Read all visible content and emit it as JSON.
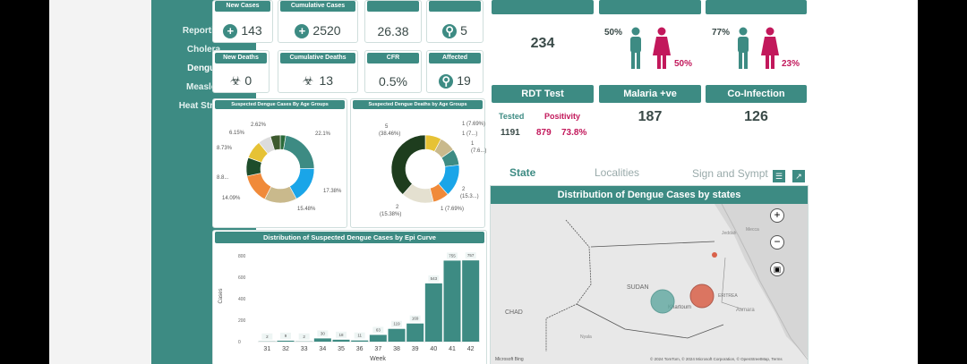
{
  "sidebar": {
    "items": [
      {
        "label": "Reporting",
        "active": false
      },
      {
        "label": "Cholera",
        "active": false
      },
      {
        "label": "Dengue",
        "active": true
      },
      {
        "label": "Measles",
        "active": false
      },
      {
        "label": "Heat Stroke",
        "active": false
      }
    ]
  },
  "kpis_top": {
    "new_cases": {
      "label": "New Cases",
      "value": "143"
    },
    "cumulative_cases": {
      "label": "Cumulative Cases",
      "value": "2520"
    },
    "kpi3": {
      "value": "26.38"
    },
    "kpi4": {
      "value": "5"
    }
  },
  "kpis_bottom": {
    "new_deaths": {
      "label": "New Deaths",
      "value": "0"
    },
    "cumulative_deaths": {
      "label": "Cumulative Deaths",
      "value": "13"
    },
    "cfr": {
      "label": "CFR",
      "value": "0.5%"
    },
    "affected_localities": {
      "label": "Affected Localities",
      "value": "19"
    }
  },
  "total": {
    "value": "234"
  },
  "cases_by_gender": {
    "male_pct": "50%",
    "female_pct": "50%"
  },
  "deaths_by_gender": {
    "male_pct": "77%",
    "female_pct": "23%"
  },
  "rdt": {
    "label": "RDT Test",
    "tested_label": "Tested",
    "positivity_label": "Positivity",
    "tested_value": "1191",
    "positivity_count": "879",
    "positivity_pct": "73.8%"
  },
  "malaria": {
    "label": "Malaria +ve",
    "value": "187"
  },
  "coinfection": {
    "label": "Co-Infection",
    "value": "126"
  },
  "tabs": [
    {
      "label": "State",
      "active": true
    },
    {
      "label": "Localities",
      "active": false
    },
    {
      "label": "Sign and Sympt",
      "active": false
    }
  ],
  "map": {
    "title": "Distribution of Dengue Cases by states",
    "labels": {
      "sudan": "SUDAN",
      "chad": "CHAD",
      "eritrea": "ERITREA",
      "asmara": "Asmara",
      "khartoum": "Khartoum",
      "nyala": "Nyala",
      "mecca": "Mecca",
      "jeddah": "Jeddah"
    },
    "attribution": "© 2024 TomTom, © 2024 Microsoft Corporation, © OpenStreetMap, Terms",
    "bubble_colors": [
      "#5fa8a0",
      "#d9614a"
    ]
  },
  "age_cases": {
    "title": "Suspected Dengue Cases By Age Groups",
    "labels": [
      "2.62%",
      "6.15%",
      "8.73%",
      "8.8...",
      "14.09%",
      "15.48%",
      "17.38%",
      "22.1%"
    ]
  },
  "age_deaths": {
    "title": "Suspected Dengue Deaths by Age Groups",
    "labels": [
      "5",
      "(38.46%)",
      "1 (7.69%)",
      "1 (7...)",
      "1",
      "(7.6...)",
      "2",
      "(15.3...)",
      "1 (7.69%)",
      "2",
      "(15.38%)"
    ]
  },
  "chart_data": [
    {
      "type": "bar",
      "title": "Distribution of Suspected Dengue Cases by Epi Curve",
      "xlabel": "Week",
      "ylabel": "Cases",
      "categories": [
        "31",
        "32",
        "33",
        "34",
        "35",
        "36",
        "37",
        "38",
        "39",
        "40",
        "41",
        "42"
      ],
      "values": [
        2,
        9,
        2,
        30,
        18,
        11,
        63,
        119,
        169,
        543,
        755,
        757
      ],
      "ylim": [
        0,
        850
      ],
      "yticks": [
        0,
        200,
        400,
        600,
        800
      ],
      "color": "#3d8b83"
    },
    {
      "type": "pie",
      "title": "Suspected Dengue Cases By Age Groups",
      "values": [
        2.62,
        22.1,
        17.38,
        15.48,
        14.09,
        8.8,
        8.73,
        6.15,
        4.65
      ],
      "colors": [
        "#2a6b3a",
        "#3d8b83",
        "#1aa5e8",
        "#c9b98c",
        "#f08a3a",
        "#1e4d2b",
        "#e6c235",
        "#dcdcdc",
        "#3d5a2e"
      ]
    },
    {
      "type": "pie",
      "title": "Suspected Dengue Deaths by Age Groups",
      "values": [
        1,
        1,
        1,
        2,
        1,
        2,
        5
      ],
      "colors": [
        "#e6c235",
        "#c9b98c",
        "#3d8b83",
        "#1aa5e8",
        "#f08a3a",
        "#e4e0d0",
        "#1e3d1e"
      ]
    }
  ]
}
